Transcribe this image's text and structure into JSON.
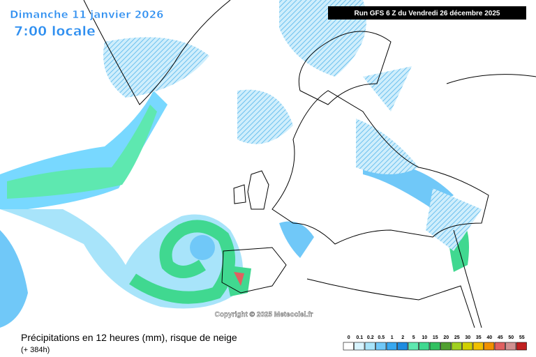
{
  "header": {
    "date": "Dimanche 11 janvier 2026",
    "time": "7:00 locale",
    "run": "Run GFS 6 Z du Vendredi 26 décembre 2025"
  },
  "copyright": "Copyright © 2025 Meteociel.fr",
  "caption": {
    "title": "Précipitations en 12 heures (mm), risque de neige",
    "lead": "(+ 384h)"
  },
  "legend": {
    "labels": [
      0,
      0.1,
      0.2,
      0.5,
      1,
      2,
      5,
      10,
      15,
      20,
      25,
      30,
      35,
      40,
      45,
      50,
      55
    ],
    "colors": [
      "#ffffff",
      "#d8f4ff",
      "#a8e4fa",
      "#70c8f8",
      "#38a8f0",
      "#1e8ce0",
      "#5ee8b0",
      "#40d890",
      "#30c060",
      "#50a030",
      "#a0d020",
      "#d0d000",
      "#f0c000",
      "#f09000",
      "#e06060",
      "#d09090",
      "#c02020"
    ]
  }
}
